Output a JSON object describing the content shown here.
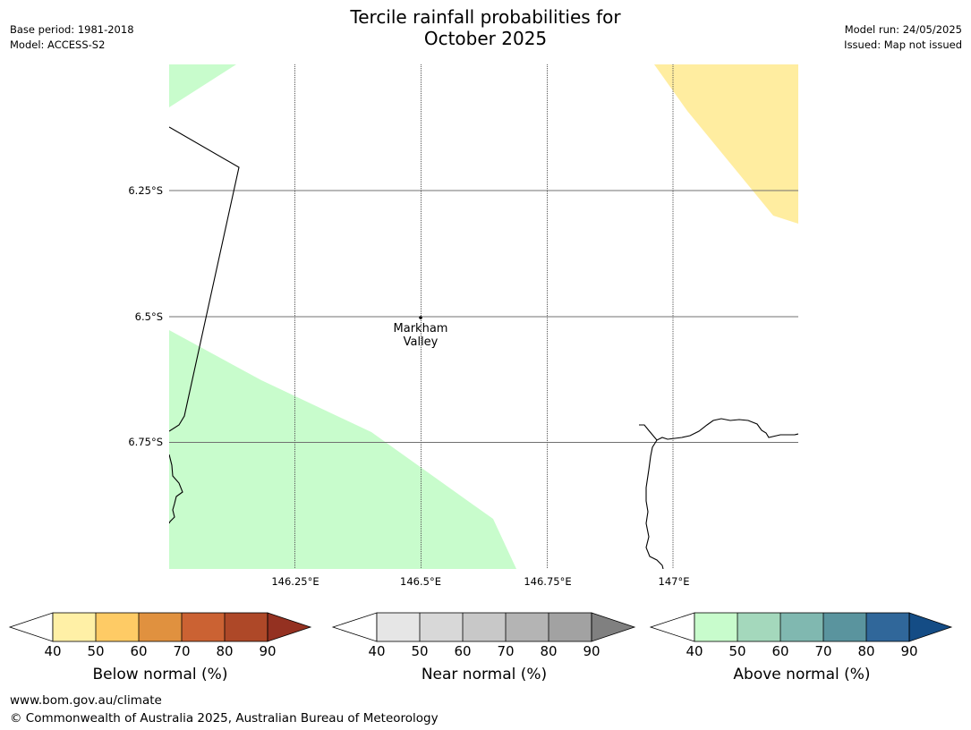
{
  "title_line1": "Tercile rainfall probabilities for",
  "title_line2": "October 2025",
  "meta_left": {
    "base_period": "Base period: 1981-2018",
    "model": "Model: ACCESS-S2"
  },
  "meta_right": {
    "model_run": "Model run: 24/05/2025",
    "issued": "Issued: Map not issued"
  },
  "map": {
    "lat_labels": [
      "6.25°S",
      "6.5°S",
      "6.75°S"
    ],
    "lon_labels": [
      "146.25°E",
      "146.5°E",
      "146.75°E",
      "147°E"
    ],
    "place": {
      "line1": "Markham",
      "line2": "Valley"
    }
  },
  "colorbars": [
    {
      "label": "Below normal (%)",
      "ticks": [
        "40",
        "50",
        "60",
        "70",
        "80",
        "90"
      ],
      "colors": [
        "#fff0a6",
        "#fecb65",
        "#e0913f",
        "#cb6233",
        "#ae4828",
        "#943121"
      ]
    },
    {
      "label": "Near normal (%)",
      "ticks": [
        "40",
        "50",
        "60",
        "70",
        "80",
        "90"
      ],
      "colors": [
        "#e6e6e6",
        "#d8d8d8",
        "#c8c8c8",
        "#b4b4b4",
        "#a2a2a2",
        "#808080"
      ]
    },
    {
      "label": "Above normal (%)",
      "ticks": [
        "40",
        "50",
        "60",
        "70",
        "80",
        "90"
      ],
      "colors": [
        "#c8fccc",
        "#a4d8bc",
        "#80b8b0",
        "#5a949e",
        "#30679a",
        "#144c85"
      ]
    }
  ],
  "footer": {
    "url": "www.bom.gov.au/climate",
    "copyright": "© Commonwealth of Australia 2025, Australian Bureau of Meteorology"
  }
}
